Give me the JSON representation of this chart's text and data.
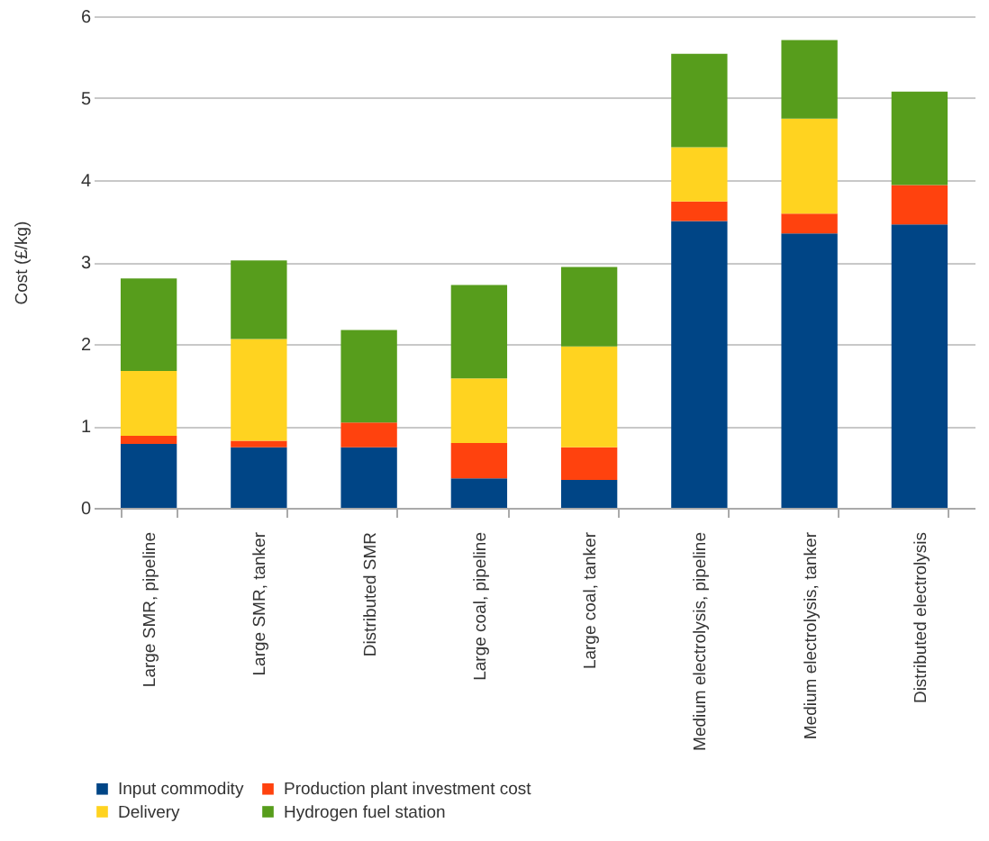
{
  "chart_data": {
    "type": "bar",
    "stacked": true,
    "ylabel": "Cost (£/kg)",
    "categories": [
      "Large SMR, pipeline",
      "Large SMR, tanker",
      "Distributed SMR",
      "Large coal, pipeline",
      "Large coal, tanker",
      "Medium electrolysis, pipeline",
      "Medium electrolysis, tanker",
      "Distributed electrolysis"
    ],
    "series": [
      {
        "name": "Input commodity",
        "color": "#004586",
        "values": [
          0.78,
          0.74,
          0.74,
          0.36,
          0.34,
          3.5,
          3.35,
          3.46
        ]
      },
      {
        "name": "Production plant investment cost",
        "color": "#ff420e",
        "values": [
          0.1,
          0.08,
          0.3,
          0.43,
          0.4,
          0.24,
          0.24,
          0.48
        ]
      },
      {
        "name": "Delivery",
        "color": "#ffd320",
        "values": [
          0.79,
          1.24,
          0,
          0.79,
          1.23,
          0.66,
          1.16,
          0
        ]
      },
      {
        "name": "Hydrogen fuel station",
        "color": "#579d1c",
        "values": [
          1.13,
          0.96,
          1.13,
          1.14,
          0.97,
          1.14,
          0.96,
          1.14
        ]
      }
    ],
    "ylim": [
      0,
      6
    ],
    "yticks": [
      0,
      1,
      2,
      3,
      4,
      5,
      6
    ],
    "grid": "y",
    "legend": "bottom"
  }
}
